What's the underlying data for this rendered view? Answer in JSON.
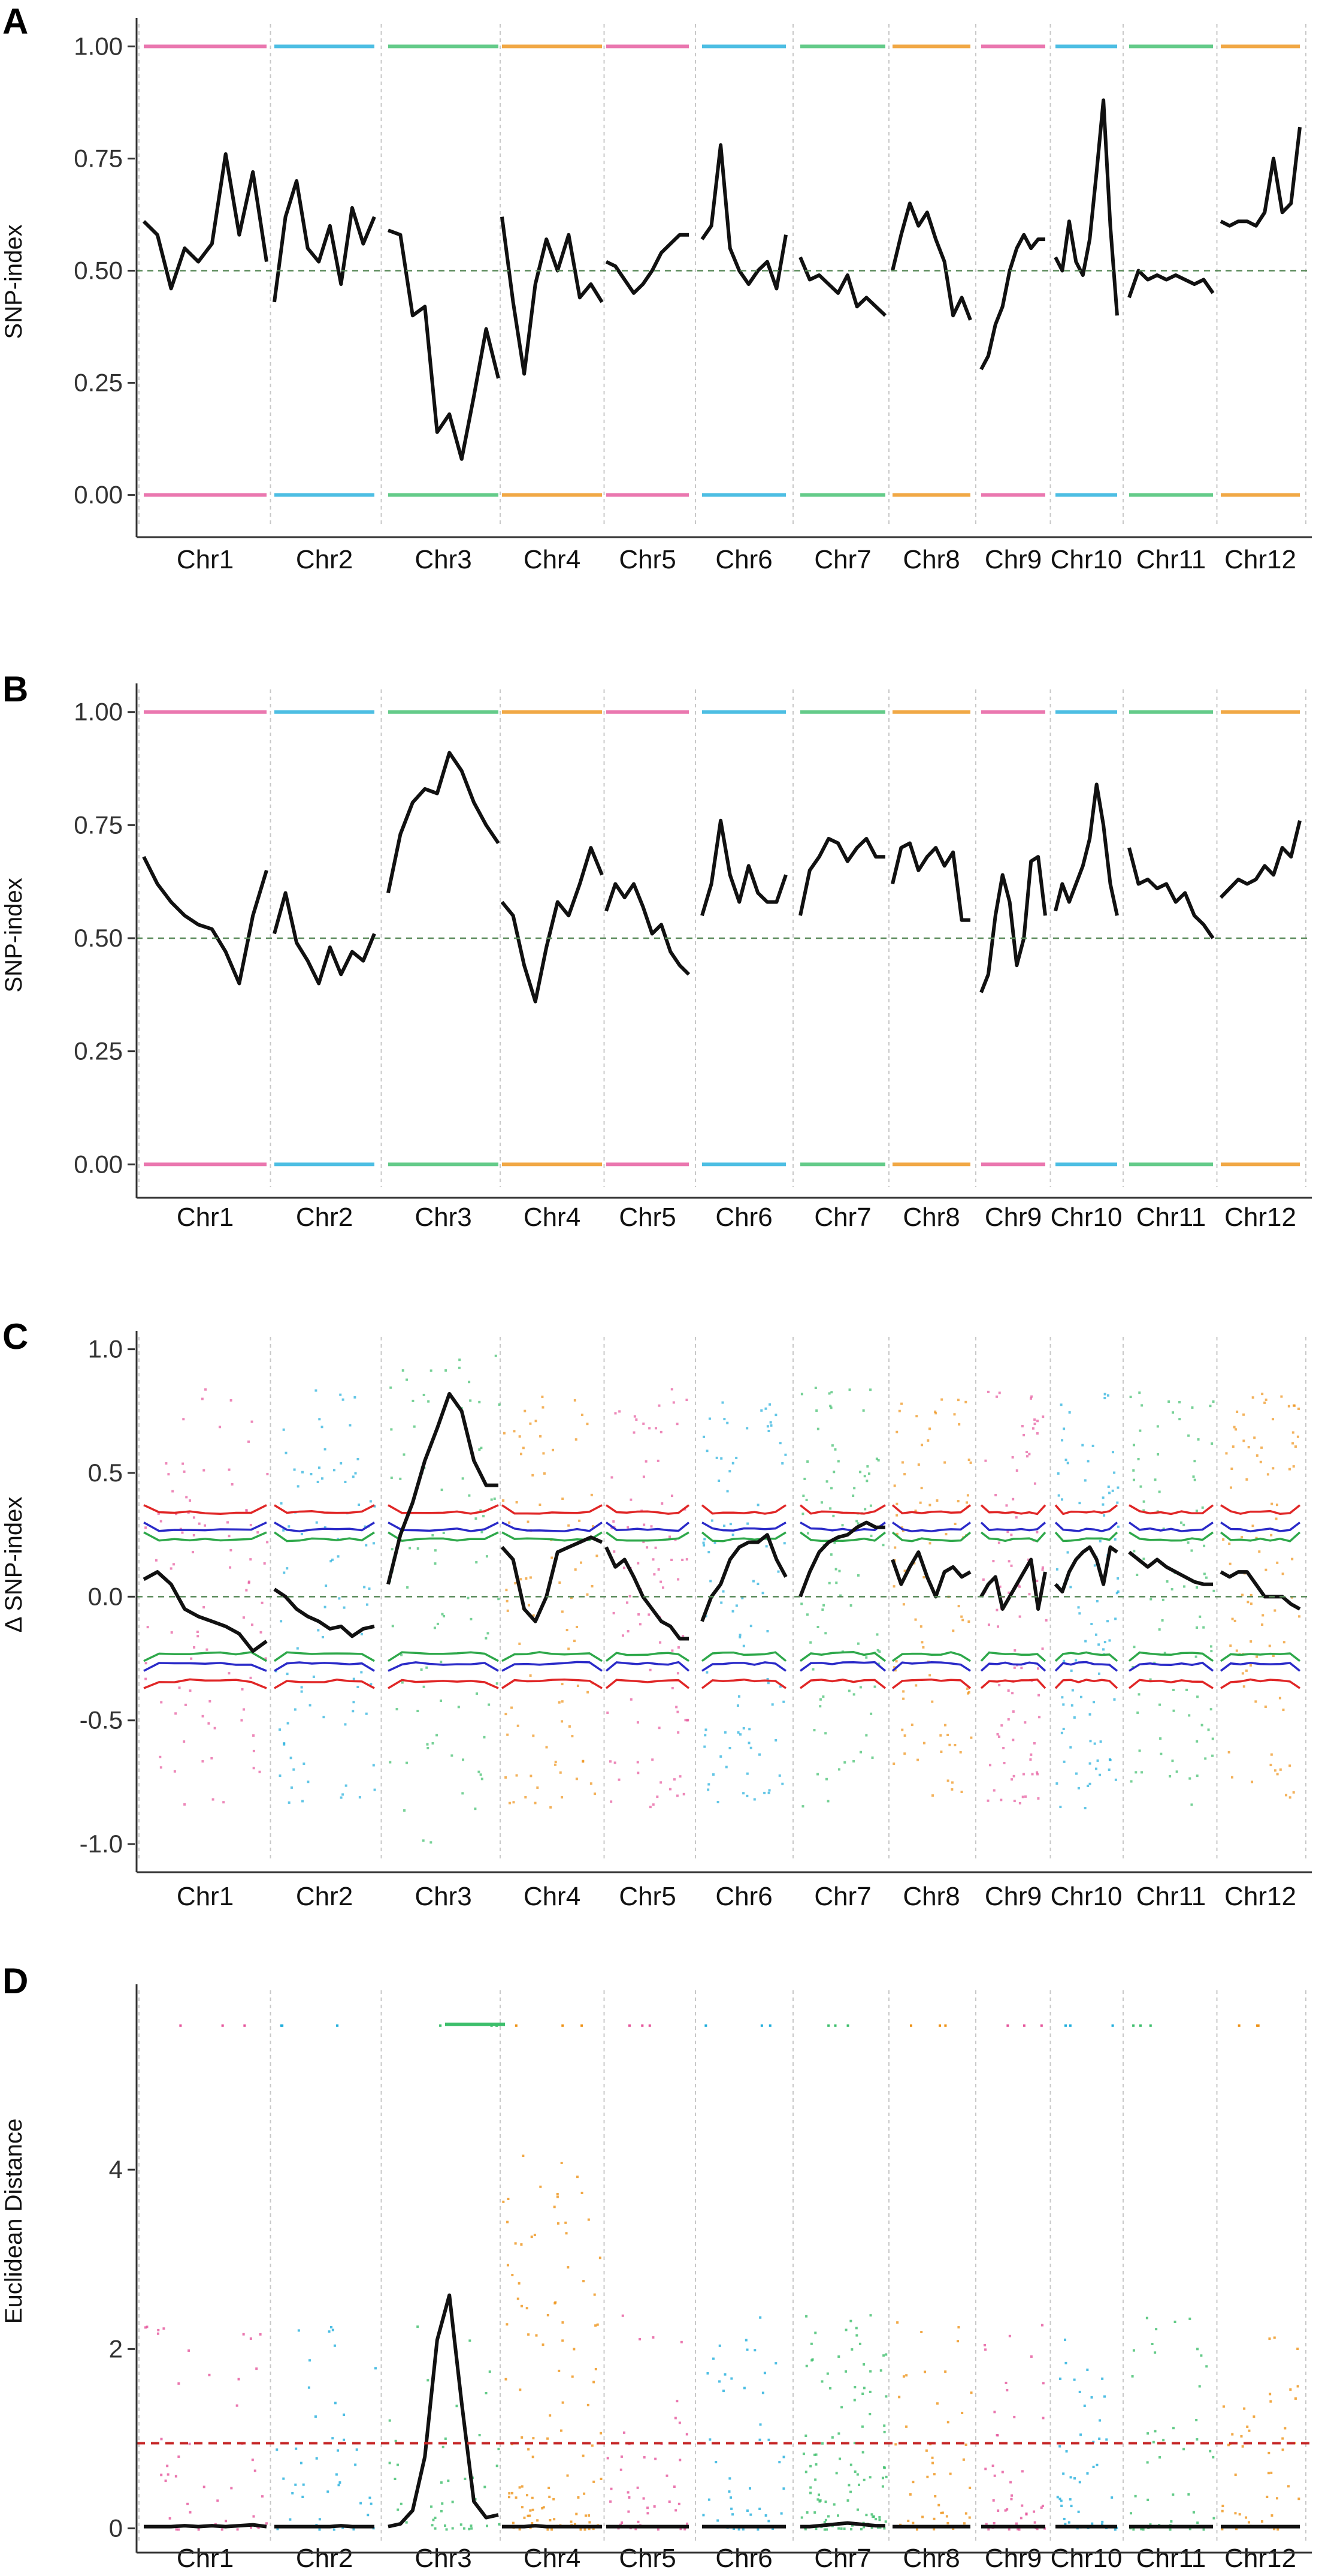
{
  "colors": {
    "pink": "#E5559B",
    "blue": "#21AEDC",
    "green": "#3DBE6B",
    "orange": "#EE9217",
    "trend": "#111111",
    "ci95": "#2EA84A",
    "ci99": "#2A2AC8",
    "ci999": "#E02626",
    "threshold": "#C62828",
    "midline": "#5a8a5a"
  },
  "chromosomes": [
    {
      "name": "Chr1",
      "color": "pink"
    },
    {
      "name": "Chr2",
      "color": "blue"
    },
    {
      "name": "Chr3",
      "color": "green"
    },
    {
      "name": "Chr4",
      "color": "orange"
    },
    {
      "name": "Chr5",
      "color": "pink"
    },
    {
      "name": "Chr6",
      "color": "blue"
    },
    {
      "name": "Chr7",
      "color": "green"
    },
    {
      "name": "Chr8",
      "color": "orange"
    },
    {
      "name": "Chr9",
      "color": "pink"
    },
    {
      "name": "Chr10",
      "color": "blue"
    },
    {
      "name": "Chr11",
      "color": "green"
    },
    {
      "name": "Chr12",
      "color": "orange"
    }
  ],
  "chart_data": [
    {
      "panel": "A",
      "type": "scatter",
      "ylabel": "SNP-index",
      "ylim": [
        -0.07,
        1.05
      ],
      "yticks": [
        0.0,
        0.25,
        0.5,
        0.75,
        1.0
      ],
      "ytick_labels": [
        "0.00",
        "0.25",
        "0.50",
        "0.75",
        "1.00"
      ],
      "reference_line": 0.5,
      "trend": [
        [
          0.61,
          0.58,
          0.46,
          0.55,
          0.52,
          0.56,
          0.76,
          0.58,
          0.72,
          0.52
        ],
        [
          0.43,
          0.62,
          0.7,
          0.55,
          0.52,
          0.6,
          0.47,
          0.64,
          0.56,
          0.62
        ],
        [
          0.59,
          0.58,
          0.4,
          0.42,
          0.14,
          0.18,
          0.08,
          0.22,
          0.37,
          0.26
        ],
        [
          0.62,
          0.43,
          0.27,
          0.47,
          0.57,
          0.5,
          0.58,
          0.44,
          0.47,
          0.43
        ],
        [
          0.52,
          0.51,
          0.48,
          0.45,
          0.47,
          0.5,
          0.54,
          0.56,
          0.58,
          0.58
        ],
        [
          0.57,
          0.6,
          0.78,
          0.55,
          0.5,
          0.47,
          0.5,
          0.52,
          0.46,
          0.58
        ],
        [
          0.53,
          0.48,
          0.49,
          0.47,
          0.45,
          0.49,
          0.42,
          0.44,
          0.42,
          0.4
        ],
        [
          0.5,
          0.58,
          0.65,
          0.6,
          0.63,
          0.57,
          0.52,
          0.4,
          0.44,
          0.39
        ],
        [
          0.28,
          0.31,
          0.38,
          0.42,
          0.5,
          0.55,
          0.58,
          0.55,
          0.57,
          0.57
        ],
        [
          0.53,
          0.5,
          0.61,
          0.52,
          0.49,
          0.57,
          0.72,
          0.88,
          0.6,
          0.4
        ],
        [
          0.44,
          0.5,
          0.48,
          0.49,
          0.48,
          0.49,
          0.48,
          0.47,
          0.48,
          0.45
        ],
        [
          0.61,
          0.6,
          0.61,
          0.61,
          0.6,
          0.63,
          0.75,
          0.63,
          0.65,
          0.82
        ]
      ]
    },
    {
      "panel": "B",
      "type": "scatter",
      "ylabel": "SNP-index",
      "ylim": [
        -0.05,
        1.05
      ],
      "yticks": [
        0.0,
        0.25,
        0.5,
        0.75,
        1.0
      ],
      "ytick_labels": [
        "0.00",
        "0.25",
        "0.50",
        "0.75",
        "1.00"
      ],
      "reference_line": 0.5,
      "trend": [
        [
          0.68,
          0.62,
          0.58,
          0.55,
          0.53,
          0.52,
          0.47,
          0.4,
          0.55,
          0.65
        ],
        [
          0.51,
          0.6,
          0.49,
          0.45,
          0.4,
          0.48,
          0.42,
          0.47,
          0.45,
          0.51
        ],
        [
          0.6,
          0.73,
          0.8,
          0.83,
          0.82,
          0.91,
          0.87,
          0.8,
          0.75,
          0.71
        ],
        [
          0.58,
          0.55,
          0.44,
          0.36,
          0.48,
          0.58,
          0.55,
          0.62,
          0.7,
          0.64
        ],
        [
          0.56,
          0.62,
          0.59,
          0.62,
          0.57,
          0.51,
          0.53,
          0.47,
          0.44,
          0.42
        ],
        [
          0.55,
          0.62,
          0.76,
          0.64,
          0.58,
          0.66,
          0.6,
          0.58,
          0.58,
          0.64
        ],
        [
          0.55,
          0.65,
          0.68,
          0.72,
          0.71,
          0.67,
          0.7,
          0.72,
          0.68,
          0.68
        ],
        [
          0.62,
          0.7,
          0.71,
          0.65,
          0.68,
          0.7,
          0.66,
          0.69,
          0.54,
          0.54
        ],
        [
          0.38,
          0.42,
          0.55,
          0.64,
          0.58,
          0.44,
          0.5,
          0.67,
          0.68,
          0.55
        ],
        [
          0.56,
          0.62,
          0.58,
          0.62,
          0.66,
          0.72,
          0.84,
          0.75,
          0.62,
          0.55
        ],
        [
          0.7,
          0.62,
          0.63,
          0.61,
          0.62,
          0.58,
          0.6,
          0.55,
          0.53,
          0.5
        ],
        [
          0.59,
          0.61,
          0.63,
          0.62,
          0.63,
          0.66,
          0.64,
          0.7,
          0.68,
          0.76
        ]
      ]
    },
    {
      "panel": "C",
      "type": "scatter",
      "ylabel": "Δ SNP-index",
      "ylim": [
        -1.07,
        1.05
      ],
      "yticks": [
        -1.0,
        -0.5,
        0.0,
        0.5,
        1.0
      ],
      "ytick_labels": [
        "-1.0",
        "-0.5",
        "0.0",
        "0.5",
        "1.0"
      ],
      "reference_line": 0.0,
      "confidence_intervals": {
        "ci95": 0.23,
        "ci99": 0.27,
        "ci999": 0.34
      },
      "trend": [
        [
          0.07,
          0.1,
          0.05,
          -0.05,
          -0.08,
          -0.1,
          -0.12,
          -0.15,
          -0.22,
          -0.18
        ],
        [
          0.03,
          0.0,
          -0.05,
          -0.08,
          -0.1,
          -0.13,
          -0.12,
          -0.16,
          -0.13,
          -0.12
        ],
        [
          0.05,
          0.25,
          0.38,
          0.55,
          0.68,
          0.82,
          0.75,
          0.55,
          0.45,
          0.45
        ],
        [
          0.2,
          0.15,
          -0.05,
          -0.1,
          0.0,
          0.18,
          0.2,
          0.22,
          0.24,
          0.22
        ],
        [
          0.2,
          0.12,
          0.15,
          0.08,
          0.0,
          -0.05,
          -0.1,
          -0.12,
          -0.17,
          -0.17
        ],
        [
          -0.1,
          0.0,
          0.05,
          0.15,
          0.2,
          0.22,
          0.22,
          0.25,
          0.15,
          0.08
        ],
        [
          0.0,
          0.1,
          0.18,
          0.22,
          0.24,
          0.25,
          0.28,
          0.3,
          0.28,
          0.28
        ],
        [
          0.15,
          0.05,
          0.12,
          0.18,
          0.08,
          0.0,
          0.1,
          0.12,
          0.08,
          0.1
        ],
        [
          0.0,
          0.05,
          0.08,
          -0.05,
          0.0,
          0.05,
          0.1,
          0.15,
          -0.05,
          0.1
        ],
        [
          0.05,
          0.02,
          0.1,
          0.15,
          0.18,
          0.2,
          0.15,
          0.05,
          0.2,
          0.18
        ],
        [
          0.18,
          0.15,
          0.12,
          0.15,
          0.12,
          0.1,
          0.08,
          0.06,
          0.05,
          0.05
        ],
        [
          0.1,
          0.08,
          0.1,
          0.1,
          0.05,
          0.0,
          0.0,
          0.0,
          -0.03,
          -0.05
        ]
      ]
    },
    {
      "panel": "D",
      "type": "scatter",
      "ylabel": "Euclidean Distance",
      "ylim": [
        -0.15,
        6.0
      ],
      "yticks": [
        0,
        2,
        4
      ],
      "ytick_labels": [
        "0",
        "2",
        "4"
      ],
      "threshold": 0.95,
      "trend": [
        [
          0.02,
          0.02,
          0.02,
          0.03,
          0.02,
          0.03,
          0.02,
          0.03,
          0.04,
          0.02
        ],
        [
          0.02,
          0.02,
          0.02,
          0.02,
          0.02,
          0.02,
          0.03,
          0.02,
          0.02,
          0.02
        ],
        [
          0.02,
          0.05,
          0.2,
          0.8,
          2.1,
          2.6,
          1.4,
          0.3,
          0.12,
          0.15
        ],
        [
          0.02,
          0.02,
          0.02,
          0.03,
          0.02,
          0.02,
          0.02,
          0.02,
          0.02,
          0.02
        ],
        [
          0.02,
          0.02,
          0.02,
          0.02,
          0.02,
          0.02,
          0.02,
          0.02,
          0.02,
          0.02
        ],
        [
          0.02,
          0.02,
          0.02,
          0.02,
          0.02,
          0.02,
          0.02,
          0.02,
          0.02,
          0.02
        ],
        [
          0.02,
          0.02,
          0.03,
          0.04,
          0.05,
          0.06,
          0.05,
          0.04,
          0.03,
          0.03
        ],
        [
          0.02,
          0.02,
          0.02,
          0.02,
          0.02,
          0.02,
          0.02,
          0.02,
          0.02,
          0.02
        ],
        [
          0.02,
          0.02,
          0.02,
          0.02,
          0.02,
          0.02,
          0.02,
          0.02,
          0.02,
          0.02
        ],
        [
          0.02,
          0.02,
          0.02,
          0.02,
          0.02,
          0.02,
          0.02,
          0.02,
          0.02,
          0.02
        ],
        [
          0.02,
          0.02,
          0.02,
          0.02,
          0.02,
          0.02,
          0.02,
          0.02,
          0.02,
          0.02
        ],
        [
          0.02,
          0.02,
          0.02,
          0.02,
          0.02,
          0.02,
          0.02,
          0.02,
          0.02,
          0.02
        ]
      ]
    }
  ]
}
